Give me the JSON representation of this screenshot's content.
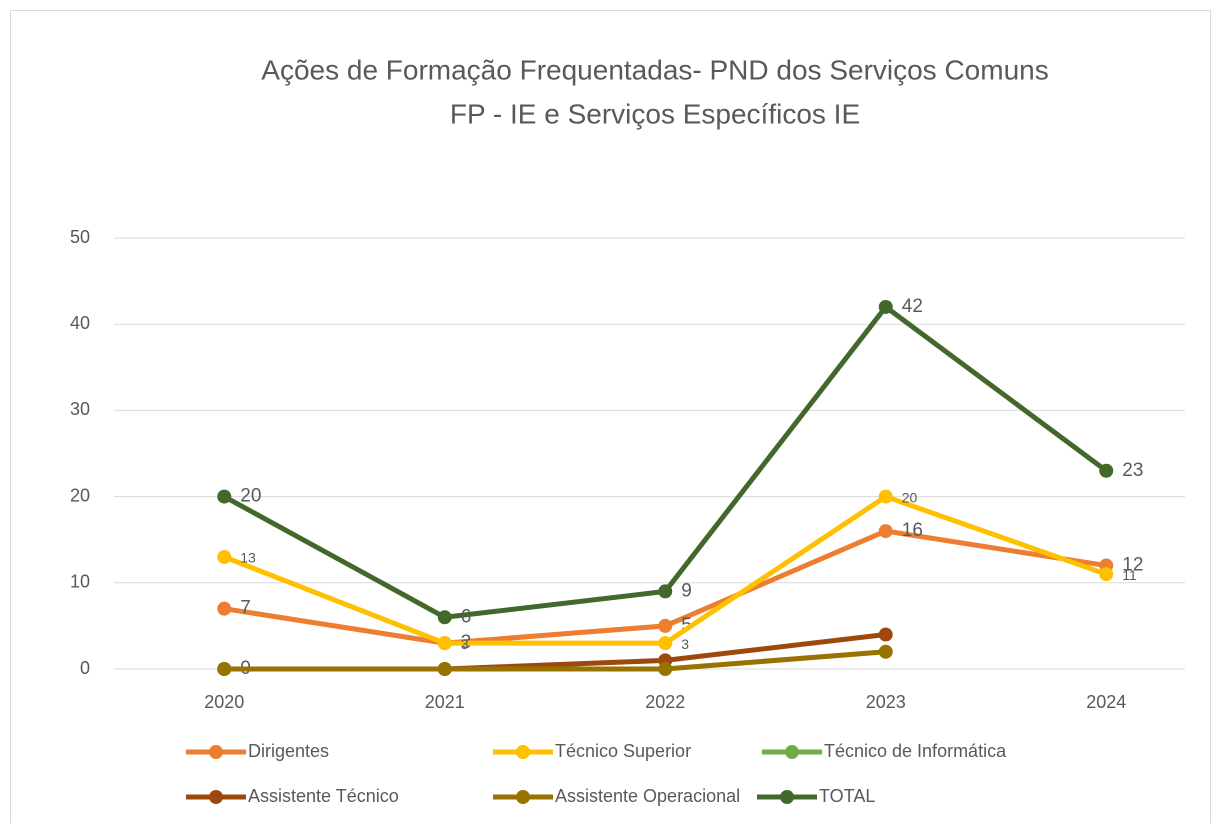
{
  "chart_data": {
    "type": "line",
    "title": [
      "Ações de Formação Frequentadas- PND dos Serviços Comuns",
      "FP - IE e Serviços Específicos IE"
    ],
    "categories": [
      "2020",
      "2021",
      "2022",
      "2023",
      "2024"
    ],
    "ylim": [
      0,
      50
    ],
    "yticks": [
      0,
      10,
      20,
      30,
      40,
      50
    ],
    "grid": true,
    "legend": "bottom",
    "series": [
      {
        "name": "Dirigentes",
        "color": "#ED7D31",
        "values": [
          7,
          3,
          5,
          16,
          12
        ],
        "data_labels": [
          0,
          1,
          2,
          3,
          4
        ]
      },
      {
        "name": "Técnico Superior",
        "color": "#FFC000",
        "values": [
          13,
          3,
          3,
          20,
          11
        ],
        "data_labels": [
          0,
          1,
          2,
          3,
          4
        ]
      },
      {
        "name": "Técnico de Informática",
        "color": "#70AD47",
        "values": [
          null,
          null,
          null,
          null,
          null
        ],
        "data_labels": []
      },
      {
        "name": "Assistente Técnico",
        "color": "#9E480E",
        "values": [
          0,
          0,
          1,
          4,
          null
        ],
        "data_labels": [
          0
        ]
      },
      {
        "name": "Assistente Operacional",
        "color": "#997300",
        "values": [
          0,
          0,
          0,
          2,
          null
        ],
        "data_labels": []
      },
      {
        "name": "TOTAL",
        "color": "#43682B",
        "values": [
          20,
          6,
          9,
          42,
          23
        ],
        "data_labels": [
          0,
          1,
          2,
          3,
          4
        ]
      }
    ]
  }
}
